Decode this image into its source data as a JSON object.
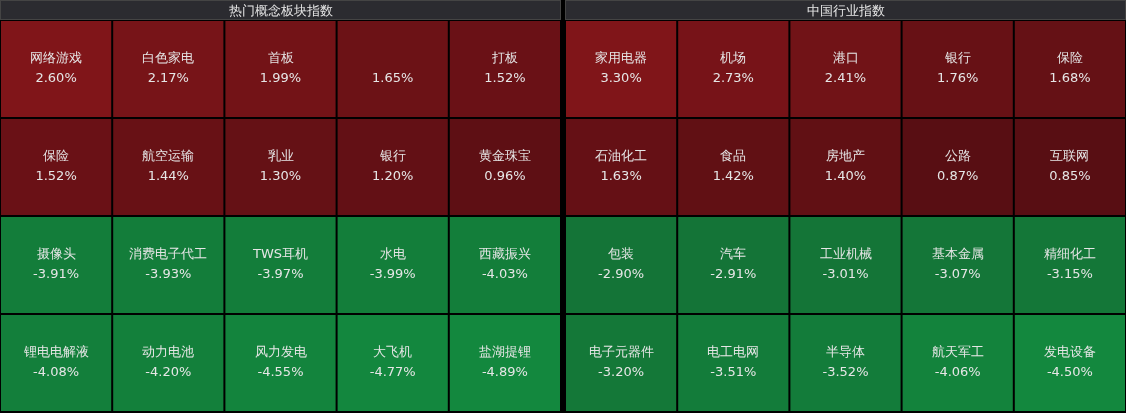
{
  "chart_data": [
    {
      "type": "other",
      "title": "热门概念板块指数",
      "categories": [
        "网络游戏",
        "白色家电",
        "首板",
        null,
        "打板",
        "保险",
        "航空运输",
        "乳业",
        "银行",
        "黄金珠宝",
        "摄像头",
        "消费电子代工",
        "TWS耳机",
        "水电",
        "西藏振兴",
        "锂电电解液",
        "动力电池",
        "风力发电",
        "大飞机",
        "盐湖提锂"
      ],
      "values": [
        2.6,
        2.17,
        1.99,
        1.65,
        1.52,
        1.52,
        1.44,
        1.3,
        1.2,
        0.96,
        -3.91,
        -3.93,
        -3.97,
        -3.99,
        -4.03,
        -4.08,
        -4.2,
        -4.55,
        -4.77,
        -4.89
      ],
      "value_labels": [
        "2.60%",
        "2.17%",
        "1.99%",
        "1.65%",
        "1.52%",
        "1.52%",
        "1.44%",
        "1.30%",
        "1.20%",
        "0.96%",
        "-3.91%",
        "-3.93%",
        "-3.97%",
        "-3.99%",
        "-4.03%",
        "-4.08%",
        "-4.20%",
        "-4.55%",
        "-4.77%",
        "-4.89%"
      ]
    },
    {
      "type": "other",
      "title": "中国行业指数",
      "categories": [
        "家用电器",
        "机场",
        "港口",
        "银行",
        "保险",
        "石油化工",
        "食品",
        "房地产",
        "公路",
        "互联网",
        "包装",
        "汽车",
        "工业机械",
        "基本金属",
        "精细化工",
        "电子元器件",
        "电工电网",
        "半导体",
        "航天军工",
        "发电设备"
      ],
      "values": [
        3.3,
        2.73,
        2.41,
        1.76,
        1.68,
        1.63,
        1.42,
        1.4,
        0.87,
        0.85,
        -2.9,
        -2.91,
        -3.01,
        -3.07,
        -3.15,
        -3.2,
        -3.51,
        -3.52,
        -4.06,
        -4.5
      ],
      "value_labels": [
        "3.30%",
        "2.73%",
        "2.41%",
        "1.76%",
        "1.68%",
        "1.63%",
        "1.42%",
        "1.40%",
        "0.87%",
        "0.85%",
        "-2.90%",
        "-2.91%",
        "-3.01%",
        "-3.07%",
        "-3.15%",
        "-3.20%",
        "-3.51%",
        "-3.52%",
        "-4.06%",
        "-4.50%"
      ]
    }
  ]
}
